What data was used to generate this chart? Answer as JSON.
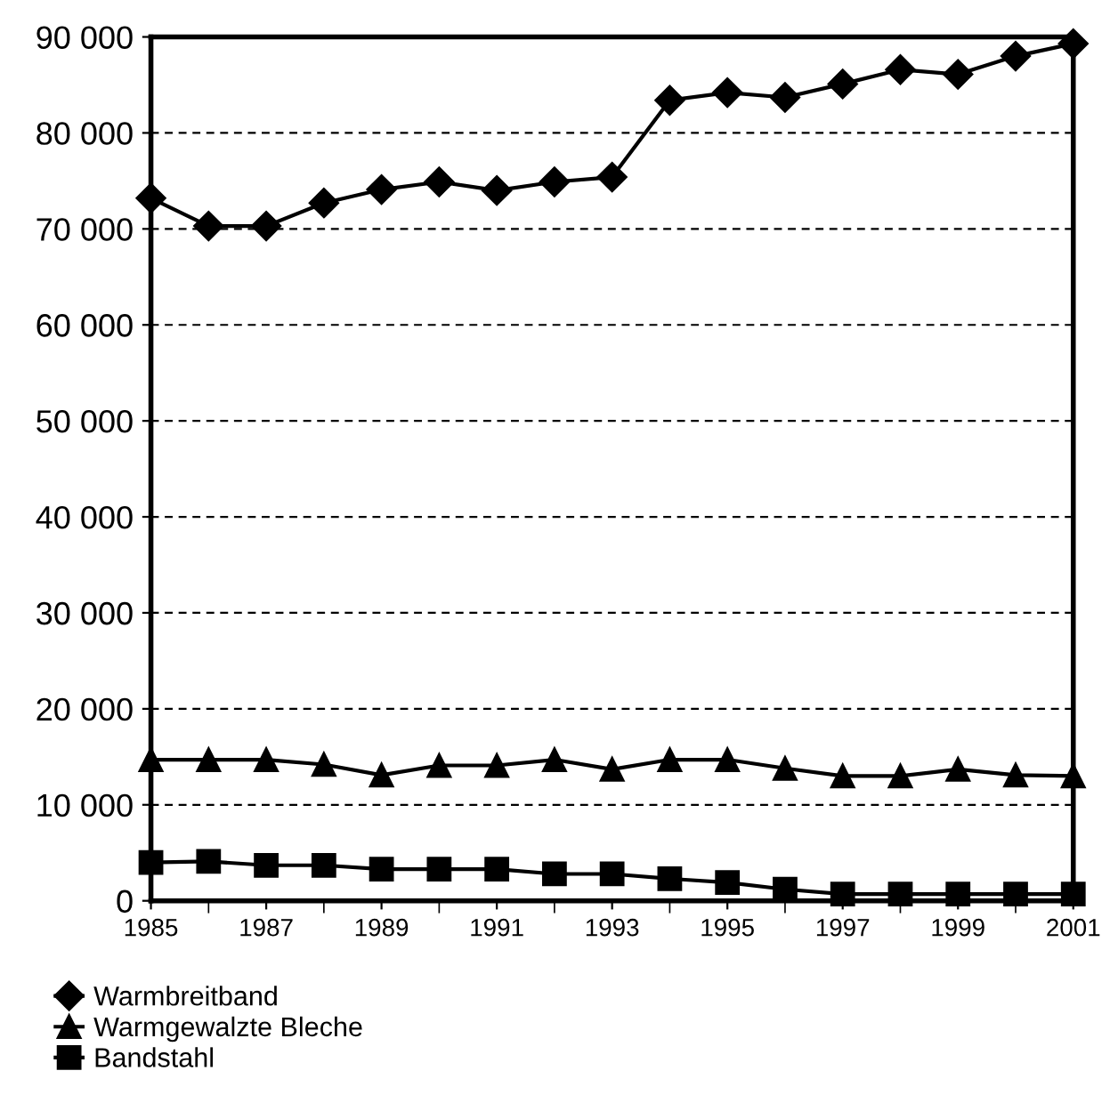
{
  "chart_data": {
    "type": "line",
    "x": [
      1985,
      1986,
      1987,
      1988,
      1989,
      1990,
      1991,
      1992,
      1993,
      1994,
      1995,
      1996,
      1997,
      1998,
      1999,
      2000,
      2001
    ],
    "series": [
      {
        "name": "Warmbreitband",
        "color": "#000000",
        "marker": "diamond",
        "values": [
          73200,
          70300,
          70300,
          72700,
          74100,
          74900,
          74000,
          74900,
          75400,
          83400,
          84200,
          83700,
          85100,
          86600,
          86100,
          88000,
          89300
        ]
      },
      {
        "name": "Warmgewalzte Bleche",
        "color": "#000000",
        "marker": "triangle",
        "values": [
          14700,
          14700,
          14700,
          14200,
          13100,
          14100,
          14100,
          14700,
          13700,
          14700,
          14700,
          13800,
          13000,
          13000,
          13700,
          13100,
          13000
        ]
      },
      {
        "name": "Bandstahl",
        "color": "#000000",
        "marker": "square",
        "values": [
          4000,
          4100,
          3700,
          3700,
          3300,
          3300,
          3300,
          2800,
          2800,
          2300,
          1900,
          1200,
          700,
          700,
          700,
          700,
          700
        ]
      }
    ],
    "xlim": [
      1985,
      2001
    ],
    "xticks": [
      1985,
      1987,
      1989,
      1991,
      1993,
      1995,
      1997,
      1999,
      2001
    ],
    "ylim": [
      0,
      90000
    ],
    "yticks": [
      {
        "value": 0,
        "label": "0"
      },
      {
        "value": 10000,
        "label": "10 000"
      },
      {
        "value": 20000,
        "label": "20 000"
      },
      {
        "value": 30000,
        "label": "30 000"
      },
      {
        "value": 40000,
        "label": "40 000"
      },
      {
        "value": 50000,
        "label": "50 000"
      },
      {
        "value": 60000,
        "label": "60 000"
      },
      {
        "value": 70000,
        "label": "70 000"
      },
      {
        "value": 80000,
        "label": "80 000"
      },
      {
        "value": 90000,
        "label": "90 000"
      }
    ],
    "grid": "y",
    "line_style": "solid",
    "legend": "bottom left"
  }
}
